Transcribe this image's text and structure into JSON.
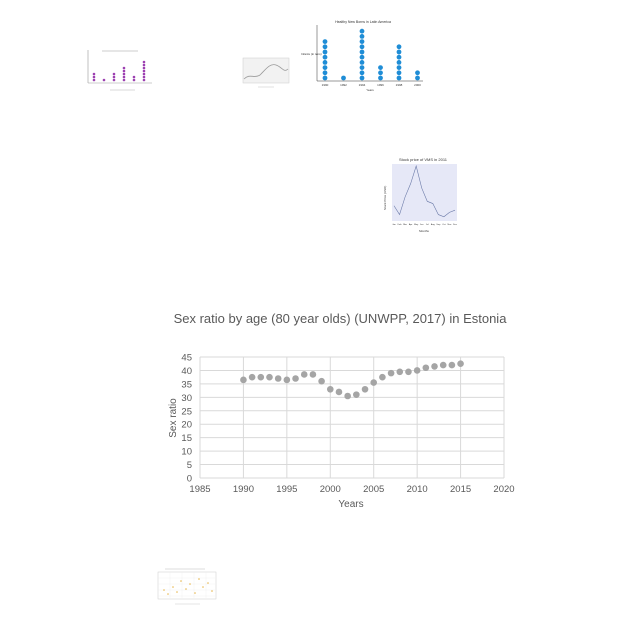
{
  "chart_data": [
    {
      "type": "scatter",
      "title": "Sex ratio by age (80 year olds) (UNWPP, 2017) in Estonia",
      "xlabel": "Years",
      "ylabel": "Sex ratio",
      "xlim": [
        1985,
        2020
      ],
      "ylim": [
        0,
        45
      ],
      "xticks": [
        "1985",
        "1990",
        "1995",
        "2000",
        "2005",
        "2010",
        "2015",
        "2020"
      ],
      "yticks": [
        "0",
        "5",
        "10",
        "15",
        "20",
        "25",
        "30",
        "35",
        "40",
        "45"
      ],
      "grid": true,
      "marker_color": "#a5a5a5",
      "x": [
        1990,
        1991,
        1992,
        1993,
        1994,
        1995,
        1996,
        1997,
        1998,
        1999,
        2000,
        2001,
        2002,
        2003,
        2004,
        2005,
        2006,
        2007,
        2008,
        2009,
        2010,
        2011,
        2012,
        2013,
        2014,
        2015
      ],
      "y": [
        36.5,
        37.5,
        37.5,
        37.5,
        37,
        36.5,
        37,
        38.5,
        38.5,
        36,
        33,
        32,
        30.5,
        31,
        33,
        35.5,
        37.5,
        39,
        39.5,
        39.5,
        40,
        41,
        41.5,
        42,
        42,
        42.5
      ]
    },
    {
      "type": "scatter",
      "title": "Healthy New Borns in Latin America",
      "xlabel": "Years",
      "ylabel": "Infants (in tens)",
      "categories": [
        "1990",
        "1992",
        "1994",
        "1996",
        "1998",
        "2000"
      ],
      "values": [
        8,
        1,
        10,
        3,
        7,
        2
      ],
      "marker_color": "#1f8dd6"
    },
    {
      "type": "line",
      "title": "Stock price of VMS in 2011",
      "xlabel": "Months",
      "ylabel": "Stock Price (USD)",
      "categories": [
        "Jan",
        "Feb",
        "Mar",
        "Apr",
        "May",
        "Jun",
        "Jul",
        "Aug",
        "Sep",
        "Oct",
        "Nov",
        "Dec"
      ],
      "values": [
        3,
        1,
        5,
        8,
        12,
        7,
        4,
        3.5,
        1,
        0.5,
        1.5,
        2
      ],
      "line_color": "#6b7aa8",
      "background": "#e6e8f7"
    }
  ]
}
